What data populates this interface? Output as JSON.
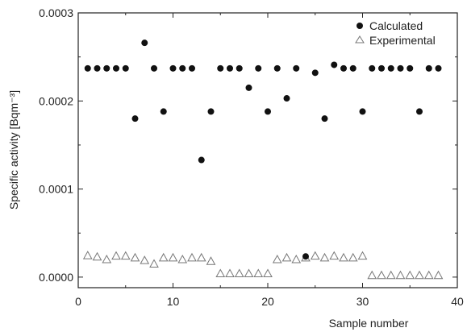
{
  "chart_data": {
    "type": "scatter",
    "xlabel": "Sample number",
    "ylabel": "Specific activity [Bqm⁻³]",
    "xlim": [
      0,
      40
    ],
    "ylim": [
      -1.2e-05,
      0.0003
    ],
    "x_ticks": [
      0,
      10,
      20,
      30,
      40
    ],
    "y_ticks": [
      0.0,
      0.0001,
      0.0002,
      0.0003
    ],
    "y_tick_labels": [
      "0.0000",
      "0.0001",
      "0.0002",
      "0.0003"
    ],
    "grid": false,
    "legend_position": "top-right",
    "series": [
      {
        "name": "Calculated",
        "marker": "filled-circle",
        "color": "#111111",
        "x": [
          1,
          2,
          3,
          4,
          5,
          6,
          7,
          8,
          9,
          10,
          11,
          12,
          13,
          14,
          15,
          16,
          17,
          18,
          19,
          20,
          21,
          22,
          23,
          24,
          25,
          26,
          27,
          28,
          29,
          30,
          31,
          32,
          33,
          34,
          35,
          36,
          37,
          38
        ],
        "y": [
          0.000237,
          0.000237,
          0.000237,
          0.000237,
          0.000237,
          0.00018,
          0.000266,
          0.000237,
          0.000188,
          0.000237,
          0.000237,
          0.000237,
          0.000133,
          0.000188,
          0.000237,
          0.000237,
          0.000237,
          0.000215,
          0.000237,
          0.000188,
          0.000237,
          0.000203,
          0.000237,
          2.35e-05,
          0.000232,
          0.00018,
          0.000241,
          0.000237,
          0.000237,
          0.000188,
          0.000237,
          0.000237,
          0.000237,
          0.000237,
          0.000237,
          0.000188,
          0.000237,
          0.000237
        ]
      },
      {
        "name": "Experimental",
        "marker": "open-triangle",
        "color": "#777777",
        "x": [
          1,
          2,
          3,
          4,
          5,
          6,
          7,
          8,
          9,
          10,
          11,
          12,
          13,
          14,
          15,
          16,
          17,
          18,
          19,
          20,
          21,
          22,
          23,
          24,
          25,
          26,
          27,
          28,
          29,
          30,
          31,
          32,
          33,
          34,
          35,
          36,
          37,
          38
        ],
        "y": [
          2.45e-05,
          2.3e-05,
          2e-05,
          2.4e-05,
          2.4e-05,
          2.2e-05,
          1.9e-05,
          1.5e-05,
          2.2e-05,
          2.2e-05,
          2e-05,
          2.2e-05,
          2.2e-05,
          1.8e-05,
          4e-06,
          4e-06,
          4e-06,
          4e-06,
          4e-06,
          4e-06,
          2e-05,
          2.2e-05,
          2e-05,
          2.2e-05,
          2.4e-05,
          2.2e-05,
          2.4e-05,
          2.2e-05,
          2.2e-05,
          2.4e-05,
          2e-06,
          2e-06,
          2e-06,
          2e-06,
          2e-06,
          2e-06,
          2e-06,
          2e-06
        ]
      }
    ]
  }
}
